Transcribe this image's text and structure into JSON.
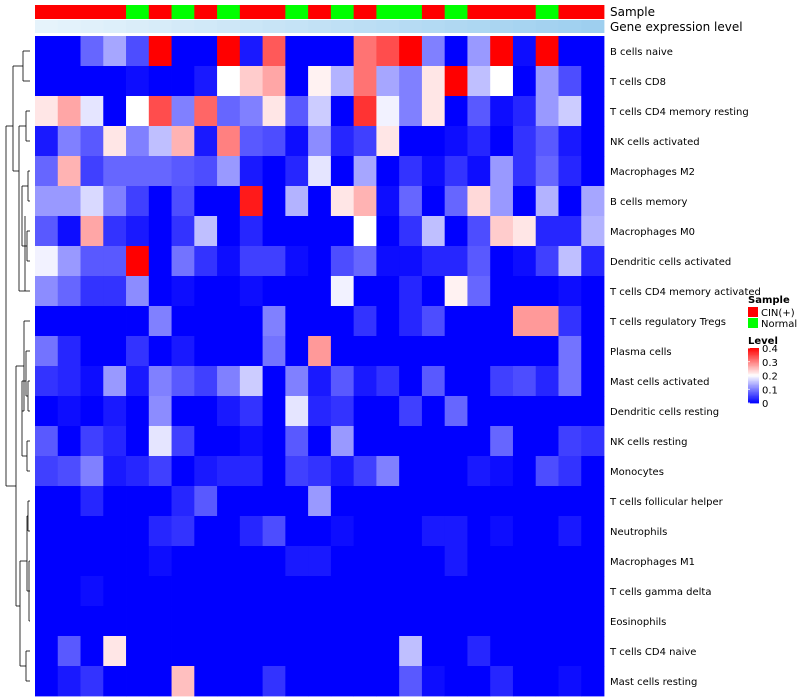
{
  "chart_data": {
    "type": "heatmap",
    "title": "",
    "annotation_tracks": [
      {
        "name": "Sample",
        "values": [
          "CIN(+)",
          "CIN(+)",
          "CIN(+)",
          "CIN(+)",
          "Normal",
          "CIN(+)",
          "Normal",
          "CIN(+)",
          "Normal",
          "CIN(+)",
          "CIN(+)",
          "Normal",
          "CIN(+)",
          "Normal",
          "CIN(+)",
          "Normal",
          "Normal",
          "CIN(+)",
          "Normal",
          "CIN(+)",
          "CIN(+)",
          "CIN(+)",
          "Normal",
          "CIN(+)",
          "CIN(+)"
        ]
      },
      {
        "name": "Gene expression level"
      }
    ],
    "rows": [
      "B cells naive",
      "T cells CD8",
      "T cells CD4 memory resting",
      "NK cells activated",
      "Macrophages M2",
      "B cells memory",
      "Macrophages M0",
      "Dendritic cells activated",
      "T cells CD4 memory activated",
      "T cells regulatory  Tregs",
      "Plasma cells",
      "Mast cells activated",
      "Dendritic cells resting",
      "NK cells resting",
      "Monocytes",
      "T cells follicular helper",
      "Neutrophils",
      "Macrophages M1",
      "T cells gamma delta",
      "Eosinophils",
      "T cells CD4 naive",
      "Mast cells resting"
    ],
    "values": [
      [
        0,
        0,
        0.08,
        0.13,
        0.06,
        0.4,
        0,
        0,
        0.4,
        0.02,
        0.33,
        0,
        0,
        0,
        0.31,
        0.34,
        0.4,
        0.1,
        0,
        0.12,
        0.4,
        0.01,
        0.4,
        0,
        0
      ],
      [
        0,
        0,
        0,
        0,
        0.01,
        0,
        0,
        0.02,
        0.2,
        0.24,
        0.27,
        0,
        0.21,
        0.14,
        0.31,
        0.13,
        0.1,
        0.22,
        0.4,
        0.15,
        0.2,
        0,
        0.12,
        0.06,
        0
      ],
      [
        0.22,
        0.27,
        0.18,
        0,
        0.2,
        0.34,
        0.1,
        0.32,
        0.08,
        0.1,
        0.22,
        0.07,
        0.16,
        0,
        0.36,
        0.19,
        0.1,
        0.22,
        0,
        0.07,
        0.01,
        0.03,
        0.12,
        0.16,
        0
      ],
      [
        0.02,
        0.1,
        0.07,
        0.22,
        0.1,
        0.15,
        0.26,
        0.02,
        0.3,
        0.07,
        0.06,
        0.01,
        0.11,
        0.03,
        0.05,
        0.22,
        0,
        0,
        0.01,
        0.03,
        0,
        0.04,
        0.07,
        0.02,
        0
      ],
      [
        0.08,
        0.26,
        0.05,
        0.08,
        0.08,
        0.08,
        0.07,
        0.06,
        0.12,
        0.02,
        0,
        0.03,
        0.18,
        0,
        0.13,
        0,
        0.04,
        0.01,
        0.04,
        0.01,
        0.12,
        0.04,
        0.08,
        0.03,
        0
      ],
      [
        0.12,
        0.12,
        0.17,
        0.1,
        0.05,
        0,
        0.06,
        0,
        0,
        0.38,
        0,
        0.14,
        0,
        0.22,
        0.26,
        0.01,
        0.08,
        0,
        0.08,
        0.23,
        0.12,
        0,
        0.14,
        0,
        0.13
      ],
      [
        0.07,
        0.01,
        0.27,
        0.04,
        0.02,
        0,
        0.04,
        0.15,
        0,
        0.03,
        0,
        0,
        0,
        0,
        0.2,
        0,
        0.04,
        0.15,
        0,
        0.06,
        0.24,
        0.22,
        0.03,
        0.03,
        0.14
      ],
      [
        0.19,
        0.12,
        0.07,
        0.07,
        0.4,
        0,
        0.09,
        0.04,
        0.01,
        0.05,
        0.05,
        0.01,
        0,
        0.06,
        0.08,
        0.01,
        0.01,
        0.03,
        0.03,
        0.07,
        0,
        0.01,
        0.05,
        0.15,
        0.03
      ],
      [
        0.11,
        0.08,
        0.04,
        0.04,
        0.11,
        0,
        0.01,
        0,
        0,
        0.01,
        0,
        0,
        0,
        0.19,
        0,
        0,
        0.03,
        0,
        0.21,
        0.08,
        0,
        0,
        0,
        0.01,
        0
      ],
      [
        0,
        0,
        0,
        0,
        0,
        0.1,
        0,
        0,
        0,
        0,
        0.1,
        0,
        0,
        0,
        0.04,
        0,
        0.03,
        0.06,
        0,
        0,
        0,
        0.28,
        0.28,
        0.04,
        0
      ],
      [
        0.09,
        0.03,
        0,
        0,
        0.04,
        0,
        0.02,
        0,
        0,
        0,
        0.09,
        0,
        0.28,
        0,
        0,
        0,
        0,
        0,
        0,
        0,
        0,
        0,
        0,
        0.09,
        0
      ],
      [
        0.04,
        0.03,
        0.01,
        0.12,
        0.02,
        0.1,
        0.07,
        0.05,
        0.1,
        0.16,
        0,
        0.1,
        0.02,
        0.07,
        0.02,
        0.04,
        0,
        0.07,
        0,
        0,
        0.05,
        0.06,
        0.03,
        0.09,
        0
      ],
      [
        0,
        0.01,
        0,
        0.02,
        0,
        0.11,
        0,
        0,
        0.02,
        0.04,
        0,
        0.18,
        0.03,
        0.04,
        0,
        0,
        0.05,
        0,
        0.08,
        0,
        0,
        0,
        0,
        0,
        0
      ],
      [
        0.07,
        0,
        0.05,
        0.03,
        0,
        0.18,
        0.05,
        0,
        0,
        0.01,
        0,
        0.07,
        0,
        0.12,
        0,
        0,
        0,
        0,
        0,
        0,
        0.08,
        0,
        0,
        0.05,
        0.04
      ],
      [
        0.05,
        0.06,
        0.1,
        0.02,
        0.03,
        0.05,
        0,
        0.02,
        0.03,
        0.03,
        0,
        0.05,
        0.04,
        0.02,
        0.05,
        0.1,
        0,
        0,
        0,
        0.02,
        0.01,
        0,
        0.06,
        0.04,
        0
      ],
      [
        0,
        0,
        0.03,
        0,
        0,
        0,
        0.03,
        0.07,
        0,
        0,
        0,
        0,
        0.12,
        0,
        0,
        0,
        0,
        0,
        0,
        0,
        0,
        0,
        0,
        0,
        0
      ],
      [
        0,
        0,
        0,
        0,
        0,
        0.03,
        0.04,
        0,
        0,
        0.03,
        0.06,
        0,
        0,
        0.01,
        0,
        0,
        0,
        0.02,
        0.02,
        0,
        0.01,
        0,
        0,
        0.02,
        0
      ],
      [
        0,
        0,
        0,
        0,
        0,
        0.01,
        0,
        0,
        0,
        0,
        0,
        0.02,
        0.02,
        0,
        0,
        0,
        0,
        0,
        0.02,
        0,
        0,
        0,
        0,
        0,
        0
      ],
      [
        0,
        0,
        0.01,
        0,
        0,
        0,
        0,
        0,
        0,
        0,
        0,
        0,
        0,
        0,
        0,
        0,
        0,
        0,
        0,
        0,
        0,
        0,
        0,
        0,
        0
      ],
      [
        0,
        0,
        0,
        0,
        0,
        0,
        0,
        0,
        0,
        0,
        0,
        0,
        0,
        0,
        0,
        0,
        0,
        0,
        0,
        0,
        0,
        0,
        0,
        0,
        0
      ],
      [
        0,
        0.07,
        0,
        0.22,
        0,
        0,
        0,
        0,
        0,
        0,
        0,
        0,
        0,
        0,
        0,
        0,
        0.15,
        0,
        0,
        0.03,
        0,
        0,
        0,
        0,
        0
      ],
      [
        0,
        0.02,
        0.04,
        0,
        0,
        0,
        0.25,
        0,
        0,
        0,
        0.04,
        0,
        0,
        0,
        0,
        0,
        0.07,
        0.01,
        0,
        0,
        0.03,
        0,
        0,
        0.01,
        0
      ]
    ],
    "color_scale": {
      "min": 0,
      "max": 0.4,
      "colors": [
        "#0000ff",
        "#ffffff",
        "#ff0000"
      ]
    },
    "legend": {
      "sample_title": "Sample",
      "sample_items": [
        {
          "label": "CIN(+)",
          "color": "#ff0000"
        },
        {
          "label": "Normal",
          "color": "#00ff00"
        }
      ],
      "level_title": "Level",
      "level_ticks": [
        {
          "value": 0.4,
          "label": "0.4"
        },
        {
          "value": 0.3,
          "label": "0.3"
        },
        {
          "value": 0.2,
          "label": "0.2"
        },
        {
          "value": 0.1,
          "label": "0.1"
        },
        {
          "value": 0,
          "label": "0"
        }
      ],
      "placement": "right"
    },
    "gene_expression_track": {
      "colors": [
        "#e6f3fb",
        "#e3f2fb",
        "#e0f0fa",
        "#ddeffa",
        "#daedf9",
        "#d7ecf9",
        "#d4eaf8",
        "#d1e9f8",
        "#cee7f7",
        "#cbe6f7",
        "#c8e4f6",
        "#c5e3f6",
        "#c2e1f5",
        "#bfe0f5",
        "#bcdef4",
        "#b9ddf4",
        "#b6dbf3",
        "#b3daf3",
        "#b0d8f2",
        "#add7f2",
        "#aad5f1",
        "#a7d4f1",
        "#a4d2f0",
        "#a1d1f0",
        "#9ecfef"
      ]
    },
    "dendrogram": "hierarchical row clustering on left"
  }
}
